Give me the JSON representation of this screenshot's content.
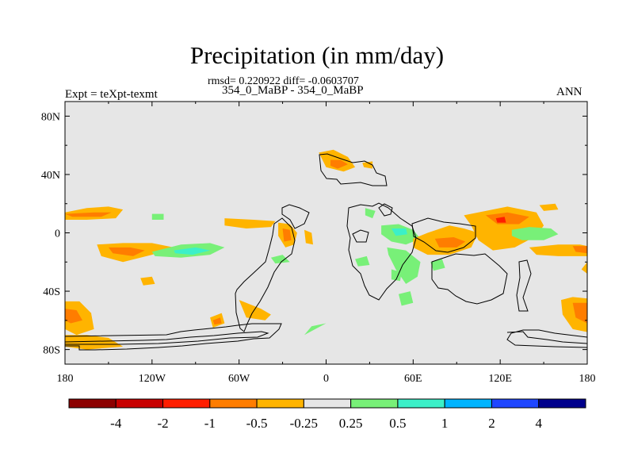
{
  "title": "Precipitation (in mm/day)",
  "stats_line": "rmsd= 0.220922 diff= -0.0603707",
  "case_line": "354_0_MaBP - 354_0_MaBP",
  "expt_label": "Expt = teXpt-texmt",
  "season_label": "ANN",
  "chart_data": {
    "type": "heatmap",
    "title": "Precipitation (in mm/day)",
    "subtitle": "354_0_MaBP - 354_0_MaBP",
    "xlabel": "",
    "ylabel": "",
    "xlim": [
      -180,
      180
    ],
    "ylim": [
      -90,
      90
    ],
    "x_ticks": [
      {
        "value": -180,
        "label": "180"
      },
      {
        "value": -120,
        "label": "120W"
      },
      {
        "value": -60,
        "label": "60W"
      },
      {
        "value": 0,
        "label": "0"
      },
      {
        "value": 60,
        "label": "60E"
      },
      {
        "value": 120,
        "label": "120E"
      },
      {
        "value": 180,
        "label": "180"
      }
    ],
    "y_ticks": [
      {
        "value": 80,
        "label": "80N"
      },
      {
        "value": 40,
        "label": "40N"
      },
      {
        "value": 0,
        "label": "0"
      },
      {
        "value": -40,
        "label": "40S"
      },
      {
        "value": -80,
        "label": "80S"
      }
    ],
    "background_color": "#e6e6e6",
    "colorbar": {
      "orientation": "horizontal",
      "colors": [
        "#8c0000",
        "#c80000",
        "#ff1e00",
        "#ff7d00",
        "#ffb400",
        "#e6e6e6",
        "#78f078",
        "#3cf0c8",
        "#00b4ff",
        "#1e46ff",
        "#00008c"
      ],
      "labels": [
        "-4",
        "-2",
        "-1",
        "-0.5",
        "-0.25",
        "0.25",
        "0.5",
        "1",
        "2",
        "4"
      ]
    },
    "regions": [
      {
        "color": "#ffb400",
        "points": [
          [
            -180,
            14
          ],
          [
            -165,
            17
          ],
          [
            -150,
            18
          ],
          [
            -140,
            16
          ],
          [
            -145,
            10
          ],
          [
            -165,
            9
          ],
          [
            -180,
            9
          ]
        ]
      },
      {
        "color": "#ff7d00",
        "points": [
          [
            -180,
            13
          ],
          [
            -160,
            14
          ],
          [
            -148,
            14
          ],
          [
            -155,
            11
          ],
          [
            -175,
            11
          ]
        ]
      },
      {
        "color": "#ffb400",
        "points": [
          [
            -158,
            -8
          ],
          [
            -140,
            -7
          ],
          [
            -120,
            -7
          ],
          [
            -105,
            -10
          ],
          [
            -120,
            -15
          ],
          [
            -140,
            -20
          ],
          [
            -155,
            -16
          ]
        ]
      },
      {
        "color": "#ff7d00",
        "points": [
          [
            -150,
            -10
          ],
          [
            -135,
            -10
          ],
          [
            -125,
            -12
          ],
          [
            -133,
            -16
          ],
          [
            -147,
            -14
          ]
        ]
      },
      {
        "color": "#78f078",
        "points": [
          [
            -120,
            -13
          ],
          [
            -100,
            -8
          ],
          [
            -80,
            -7
          ],
          [
            -70,
            -10
          ],
          [
            -80,
            -15
          ],
          [
            -100,
            -17
          ],
          [
            -118,
            -16
          ]
        ]
      },
      {
        "color": "#3cf0c8",
        "points": [
          [
            -105,
            -12
          ],
          [
            -90,
            -10
          ],
          [
            -80,
            -12
          ],
          [
            -92,
            -15
          ],
          [
            -104,
            -14
          ]
        ]
      },
      {
        "color": "#ffb400",
        "points": [
          [
            -180,
            -47
          ],
          [
            -170,
            -47
          ],
          [
            -162,
            -55
          ],
          [
            -160,
            -66
          ],
          [
            -172,
            -70
          ],
          [
            -180,
            -66
          ]
        ]
      },
      {
        "color": "#ff7d00",
        "points": [
          [
            -180,
            -52
          ],
          [
            -172,
            -53
          ],
          [
            -168,
            -60
          ],
          [
            -176,
            -62
          ],
          [
            -180,
            -60
          ]
        ]
      },
      {
        "color": "#ffb400",
        "points": [
          [
            -180,
            -70
          ],
          [
            -165,
            -70
          ],
          [
            -150,
            -72
          ],
          [
            -140,
            -78
          ],
          [
            -165,
            -80
          ],
          [
            -180,
            -78
          ]
        ]
      },
      {
        "color": "#ffb400",
        "points": [
          [
            -60,
            -46
          ],
          [
            -45,
            -52
          ],
          [
            -38,
            -56
          ],
          [
            -42,
            -60
          ],
          [
            -55,
            -58
          ]
        ]
      },
      {
        "color": "#ffb400",
        "points": [
          [
            -80,
            -58
          ],
          [
            -72,
            -55
          ],
          [
            -70,
            -62
          ],
          [
            -78,
            -65
          ]
        ]
      },
      {
        "color": "#ff7d00",
        "points": [
          [
            -78,
            -60
          ],
          [
            -73,
            -58
          ],
          [
            -72,
            -62
          ],
          [
            -77,
            -63
          ]
        ]
      },
      {
        "color": "#ffb400",
        "points": [
          [
            -128,
            -31
          ],
          [
            -120,
            -30
          ],
          [
            -118,
            -35
          ],
          [
            -126,
            -36
          ]
        ]
      },
      {
        "color": "#78f078",
        "points": [
          [
            -120,
            13
          ],
          [
            -112,
            13
          ],
          [
            -112,
            9
          ],
          [
            -120,
            9
          ]
        ]
      },
      {
        "color": "#ffb400",
        "points": [
          [
            -70,
            10
          ],
          [
            -50,
            9
          ],
          [
            -35,
            8
          ],
          [
            -38,
            4
          ],
          [
            -55,
            3
          ],
          [
            -70,
            5
          ]
        ]
      },
      {
        "color": "#ffb400",
        "points": [
          [
            -33,
            7
          ],
          [
            -25,
            6
          ],
          [
            -20,
            0
          ],
          [
            -22,
            -8
          ],
          [
            -28,
            -10
          ],
          [
            -33,
            -2
          ]
        ]
      },
      {
        "color": "#ff7d00",
        "points": [
          [
            -30,
            3
          ],
          [
            -25,
            2
          ],
          [
            -24,
            -5
          ],
          [
            -29,
            -6
          ]
        ]
      },
      {
        "color": "#ffb400",
        "points": [
          [
            -15,
            2
          ],
          [
            -10,
            0
          ],
          [
            -9,
            -8
          ],
          [
            -14,
            -7
          ]
        ]
      },
      {
        "color": "#78f078",
        "points": [
          [
            -38,
            -17
          ],
          [
            -30,
            -15
          ],
          [
            -25,
            -20
          ],
          [
            -35,
            -21
          ]
        ]
      },
      {
        "color": "#ffb400",
        "points": [
          [
            -5,
            55
          ],
          [
            5,
            57
          ],
          [
            15,
            52
          ],
          [
            20,
            45
          ],
          [
            12,
            42
          ],
          [
            0,
            45
          ]
        ]
      },
      {
        "color": "#ff7d00",
        "points": [
          [
            3,
            50
          ],
          [
            10,
            50
          ],
          [
            15,
            47
          ],
          [
            8,
            44
          ],
          [
            3,
            46
          ]
        ]
      },
      {
        "color": "#ffb400",
        "points": [
          [
            25,
            48
          ],
          [
            32,
            49
          ],
          [
            32,
            44
          ],
          [
            26,
            45
          ]
        ]
      },
      {
        "color": "#78f078",
        "points": [
          [
            27,
            17
          ],
          [
            34,
            15
          ],
          [
            32,
            10
          ],
          [
            27,
            12
          ]
        ]
      },
      {
        "color": "#78f078",
        "points": [
          [
            38,
            5
          ],
          [
            50,
            6
          ],
          [
            60,
            2
          ],
          [
            65,
            -4
          ],
          [
            55,
            -8
          ],
          [
            45,
            -6
          ],
          [
            38,
            -1
          ]
        ]
      },
      {
        "color": "#3cf0c8",
        "points": [
          [
            45,
            3
          ],
          [
            55,
            3
          ],
          [
            56,
            -1
          ],
          [
            48,
            -2
          ]
        ]
      },
      {
        "color": "#78f078",
        "points": [
          [
            42,
            -10
          ],
          [
            55,
            -12
          ],
          [
            65,
            -20
          ],
          [
            63,
            -30
          ],
          [
            55,
            -35
          ],
          [
            48,
            -25
          ],
          [
            43,
            -15
          ]
        ]
      },
      {
        "color": "#78f078",
        "points": [
          [
            50,
            -42
          ],
          [
            58,
            -40
          ],
          [
            60,
            -48
          ],
          [
            52,
            -50
          ]
        ]
      },
      {
        "color": "#78f078",
        "points": [
          [
            20,
            -18
          ],
          [
            28,
            -16
          ],
          [
            30,
            -22
          ],
          [
            22,
            -23
          ]
        ]
      },
      {
        "color": "#ffb400",
        "points": [
          [
            60,
            -4
          ],
          [
            70,
            0
          ],
          [
            85,
            5
          ],
          [
            95,
            3
          ],
          [
            105,
            0
          ],
          [
            100,
            -10
          ],
          [
            85,
            -15
          ],
          [
            70,
            -15
          ],
          [
            60,
            -10
          ]
        ]
      },
      {
        "color": "#ff7d00",
        "points": [
          [
            75,
            -4
          ],
          [
            88,
            -3
          ],
          [
            96,
            -6
          ],
          [
            90,
            -10
          ],
          [
            78,
            -10
          ]
        ]
      },
      {
        "color": "#ffb400",
        "points": [
          [
            95,
            12
          ],
          [
            110,
            15
          ],
          [
            125,
            18
          ],
          [
            145,
            14
          ],
          [
            150,
            5
          ],
          [
            145,
            -2
          ],
          [
            130,
            -10
          ],
          [
            115,
            -12
          ],
          [
            105,
            -5
          ],
          [
            100,
            5
          ]
        ]
      },
      {
        "color": "#ff7d00",
        "points": [
          [
            110,
            12
          ],
          [
            125,
            14
          ],
          [
            140,
            11
          ],
          [
            133,
            6
          ],
          [
            118,
            6
          ]
        ]
      },
      {
        "color": "#ff1e00",
        "points": [
          [
            117,
            10
          ],
          [
            123,
            11
          ],
          [
            124,
            7
          ],
          [
            118,
            7
          ]
        ]
      },
      {
        "color": "#78f078",
        "points": [
          [
            128,
            2
          ],
          [
            140,
            4
          ],
          [
            155,
            3
          ],
          [
            160,
            -1
          ],
          [
            150,
            -5
          ],
          [
            135,
            -5
          ],
          [
            128,
            -2
          ]
        ]
      },
      {
        "color": "#ffb400",
        "points": [
          [
            140,
            -10
          ],
          [
            160,
            -8
          ],
          [
            175,
            -8
          ],
          [
            180,
            -9
          ],
          [
            180,
            -16
          ],
          [
            160,
            -16
          ],
          [
            145,
            -15
          ]
        ]
      },
      {
        "color": "#ff7d00",
        "points": [
          [
            170,
            -9
          ],
          [
            180,
            -9
          ],
          [
            180,
            -14
          ],
          [
            172,
            -13
          ]
        ]
      },
      {
        "color": "#ffb400",
        "points": [
          [
            147,
            19
          ],
          [
            158,
            20
          ],
          [
            160,
            16
          ],
          [
            150,
            15
          ]
        ]
      },
      {
        "color": "#ffb400",
        "points": [
          [
            180,
            -20
          ],
          [
            176,
            -25
          ],
          [
            180,
            -28
          ]
        ]
      },
      {
        "color": "#78f078",
        "points": [
          [
            45,
            -25
          ],
          [
            52,
            -27
          ],
          [
            51,
            -33
          ],
          [
            45,
            -32
          ]
        ]
      },
      {
        "color": "#78f078",
        "points": [
          [
            72,
            -20
          ],
          [
            80,
            -18
          ],
          [
            82,
            -24
          ],
          [
            74,
            -26
          ]
        ]
      },
      {
        "color": "#ffb400",
        "points": [
          [
            162,
            -46
          ],
          [
            170,
            -44
          ],
          [
            180,
            -45
          ],
          [
            180,
            -68
          ],
          [
            170,
            -66
          ],
          [
            163,
            -56
          ]
        ]
      },
      {
        "color": "#ff7d00",
        "points": [
          [
            170,
            -48
          ],
          [
            180,
            -48
          ],
          [
            180,
            -62
          ],
          [
            172,
            -58
          ]
        ]
      },
      {
        "color": "#78f078",
        "points": [
          [
            0,
            -62
          ],
          [
            -10,
            -64
          ],
          [
            -15,
            -70
          ]
        ]
      }
    ]
  }
}
